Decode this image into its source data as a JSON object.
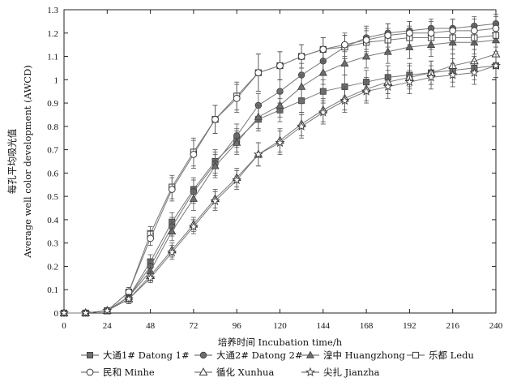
{
  "chart_data": {
    "type": "line",
    "xlabel": "培养时间 Incubation time/h",
    "ylabel_cn": "每孔平均吸光值",
    "ylabel_en": "Average well color development (AWCD)",
    "xlim": [
      0,
      240
    ],
    "ylim": [
      0,
      1.3
    ],
    "xticks": [
      0,
      24,
      48,
      72,
      96,
      120,
      144,
      168,
      192,
      216,
      240
    ],
    "yticks": [
      0,
      0.1,
      0.2,
      0.3,
      0.4,
      0.5,
      0.6,
      0.7,
      0.8,
      0.9,
      1.0,
      1.1,
      1.2,
      1.3
    ],
    "grid": false,
    "legend_position": "bottom",
    "x": [
      0,
      12,
      24,
      36,
      48,
      60,
      72,
      84,
      96,
      108,
      120,
      132,
      144,
      156,
      168,
      180,
      192,
      204,
      216,
      228,
      240
    ],
    "series": [
      {
        "name": "大通1# Datong 1#",
        "marker": "square-filled",
        "values": [
          0,
          0,
          0.01,
          0.07,
          0.22,
          0.39,
          0.53,
          0.65,
          0.74,
          0.83,
          0.87,
          0.91,
          0.95,
          0.97,
          0.99,
          1.01,
          1.02,
          1.03,
          1.04,
          1.05,
          1.06
        ],
        "errors": [
          0.005,
          0.005,
          0.01,
          0.02,
          0.03,
          0.04,
          0.05,
          0.05,
          0.05,
          0.05,
          0.05,
          0.05,
          0.05,
          0.05,
          0.05,
          0.05,
          0.05,
          0.05,
          0.05,
          0.05,
          0.05
        ]
      },
      {
        "name": "大通2# Datong 2#",
        "marker": "circle-filled",
        "values": [
          0,
          0,
          0.01,
          0.07,
          0.2,
          0.37,
          0.52,
          0.64,
          0.76,
          0.89,
          0.95,
          1.02,
          1.08,
          1.14,
          1.18,
          1.2,
          1.21,
          1.22,
          1.22,
          1.23,
          1.24
        ],
        "errors": [
          0.005,
          0.005,
          0.01,
          0.02,
          0.03,
          0.04,
          0.05,
          0.05,
          0.05,
          0.05,
          0.05,
          0.05,
          0.05,
          0.05,
          0.05,
          0.04,
          0.04,
          0.04,
          0.04,
          0.04,
          0.04
        ]
      },
      {
        "name": "湟中 Huangzhong",
        "marker": "triangle-filled",
        "values": [
          0,
          0,
          0.01,
          0.07,
          0.18,
          0.35,
          0.49,
          0.63,
          0.73,
          0.84,
          0.89,
          0.97,
          1.03,
          1.07,
          1.1,
          1.12,
          1.14,
          1.15,
          1.16,
          1.16,
          1.17
        ],
        "errors": [
          0.005,
          0.005,
          0.01,
          0.02,
          0.03,
          0.04,
          0.05,
          0.05,
          0.05,
          0.05,
          0.05,
          0.05,
          0.05,
          0.05,
          0.05,
          0.05,
          0.05,
          0.05,
          0.05,
          0.05,
          0.05
        ]
      },
      {
        "name": "乐都 Ledu",
        "marker": "square-open",
        "values": [
          0,
          0,
          0.01,
          0.09,
          0.34,
          0.54,
          0.69,
          0.83,
          0.93,
          1.03,
          1.06,
          1.1,
          1.13,
          1.14,
          1.16,
          1.17,
          1.18,
          1.18,
          1.18,
          1.18,
          1.19
        ],
        "errors": [
          0.005,
          0.005,
          0.01,
          0.02,
          0.03,
          0.05,
          0.06,
          0.06,
          0.06,
          0.08,
          0.06,
          0.05,
          0.05,
          0.05,
          0.05,
          0.05,
          0.05,
          0.05,
          0.05,
          0.05,
          0.05
        ]
      },
      {
        "name": "民和 Minhe",
        "marker": "circle-open",
        "values": [
          0,
          0,
          0.01,
          0.09,
          0.32,
          0.53,
          0.68,
          0.83,
          0.92,
          1.03,
          1.06,
          1.1,
          1.13,
          1.15,
          1.17,
          1.19,
          1.2,
          1.2,
          1.21,
          1.21,
          1.22
        ],
        "errors": [
          0.005,
          0.005,
          0.01,
          0.02,
          0.03,
          0.05,
          0.06,
          0.06,
          0.06,
          0.08,
          0.06,
          0.05,
          0.05,
          0.05,
          0.05,
          0.05,
          0.05,
          0.05,
          0.05,
          0.05,
          0.05
        ]
      },
      {
        "name": "循化 Xunhua",
        "marker": "triangle-open",
        "values": [
          0,
          0,
          0.01,
          0.06,
          0.16,
          0.27,
          0.38,
          0.49,
          0.58,
          0.68,
          0.74,
          0.81,
          0.87,
          0.92,
          0.96,
          0.99,
          1.01,
          1.03,
          1.06,
          1.08,
          1.11
        ],
        "errors": [
          0.005,
          0.005,
          0.01,
          0.02,
          0.02,
          0.03,
          0.03,
          0.04,
          0.04,
          0.05,
          0.05,
          0.05,
          0.05,
          0.05,
          0.05,
          0.05,
          0.05,
          0.05,
          0.05,
          0.05,
          0.05
        ]
      },
      {
        "name": "尖扎 Jianzha",
        "marker": "star-open",
        "values": [
          0,
          0,
          0.01,
          0.06,
          0.15,
          0.26,
          0.37,
          0.48,
          0.57,
          0.68,
          0.73,
          0.8,
          0.86,
          0.91,
          0.95,
          0.97,
          0.99,
          1.01,
          1.02,
          1.03,
          1.06
        ],
        "errors": [
          0.005,
          0.005,
          0.01,
          0.02,
          0.02,
          0.03,
          0.03,
          0.04,
          0.04,
          0.05,
          0.05,
          0.05,
          0.05,
          0.05,
          0.05,
          0.05,
          0.05,
          0.05,
          0.05,
          0.05,
          0.05
        ]
      }
    ]
  }
}
